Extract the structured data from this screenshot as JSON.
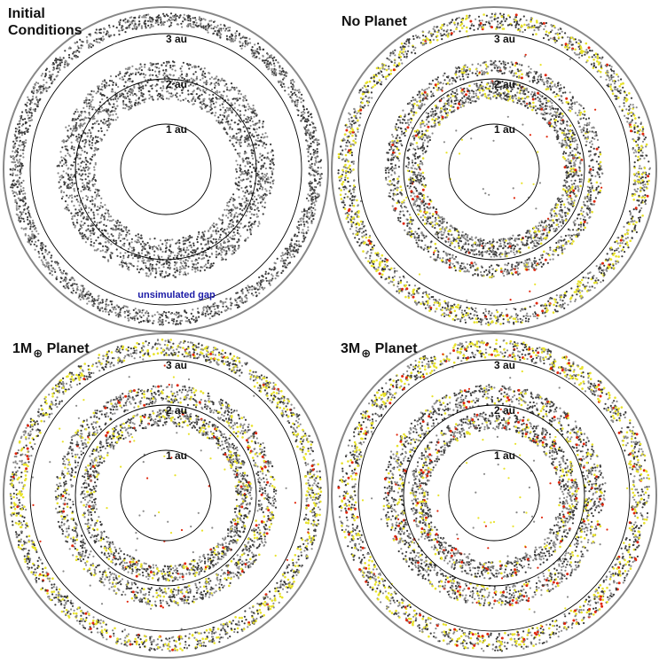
{
  "figure": {
    "panels": [
      {
        "id": "initial",
        "title_lines": [
          "Initial",
          "Conditions"
        ],
        "ring_labels": [
          "1 au",
          "2 au",
          "3 au"
        ],
        "annotation": "unsimulated gap",
        "annotation_color": "#1a1aa6",
        "rings": [
          {
            "inner_au": 1.55,
            "outer_au": 2.4,
            "count": 2400
          },
          {
            "inner_au": 3.15,
            "outer_au": 3.45,
            "count": 1900
          }
        ],
        "scatter_dots": 0,
        "yellow_fraction": 0.0,
        "red_fraction": 0.0
      },
      {
        "id": "no-planet",
        "title_text": "No Planet",
        "ring_labels": [
          "1 au",
          "2 au",
          "3 au"
        ],
        "rings": [
          {
            "inner_au": 1.55,
            "outer_au": 1.95,
            "count": 1500
          },
          {
            "inner_au": 2.1,
            "outer_au": 2.4,
            "count": 1100
          },
          {
            "inner_au": 3.1,
            "outer_au": 3.45,
            "count": 1700
          }
        ],
        "scatter_dots": 70,
        "yellow_fraction": 0.18,
        "red_fraction": 0.03
      },
      {
        "id": "one-earth-mass",
        "title_prefix": "1M",
        "title_subscript": "⊕",
        "title_suffix": " Planet",
        "ring_labels": [
          "1 au",
          "2 au",
          "3 au"
        ],
        "rings": [
          {
            "inner_au": 1.55,
            "outer_au": 1.9,
            "count": 1200
          },
          {
            "inner_au": 2.05,
            "outer_au": 2.45,
            "count": 1300
          },
          {
            "inner_au": 3.1,
            "outer_au": 3.45,
            "count": 1700
          }
        ],
        "scatter_dots": 110,
        "yellow_fraction": 0.2,
        "red_fraction": 0.025
      },
      {
        "id": "three-earth-mass",
        "title_prefix": "3M",
        "title_subscript": "⊕",
        "title_suffix": " Planet",
        "ring_labels": [
          "1 au",
          "2 au",
          "3 au"
        ],
        "rings": [
          {
            "inner_au": 1.45,
            "outer_au": 1.85,
            "count": 1200
          },
          {
            "inner_au": 2.0,
            "outer_au": 2.45,
            "count": 1400
          },
          {
            "inner_au": 3.05,
            "outer_au": 3.45,
            "count": 1700
          }
        ],
        "scatter_dots": 120,
        "yellow_fraction": 0.2,
        "red_fraction": 0.05
      }
    ],
    "colors": {
      "particle": "#3a3a3a",
      "particle_light": "#8a8a8a",
      "yellow": "#e8e22a",
      "red": "#e0260c",
      "orbit_line": "#000000",
      "outer_border": "#888888"
    },
    "orbit_radii_au": [
      1,
      2,
      3
    ],
    "disk_outer_au": 3.6
  }
}
